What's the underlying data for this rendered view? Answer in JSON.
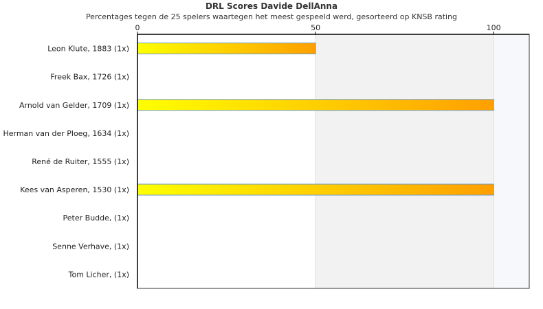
{
  "chart_data": {
    "type": "bar",
    "orientation": "horizontal",
    "title": "DRL Scores Davide DellAnna",
    "subtitle": "Percentages tegen de 25 spelers waartegen het meest gespeeld werd, gesorteerd op KNSB rating",
    "xlabel": "",
    "ylabel": "",
    "xlim": [
      0,
      110
    ],
    "x_ticks": [
      0,
      50,
      100
    ],
    "categories": [
      "Leon Klute, 1883 (1x)",
      "Freek Bax, 1726 (1x)",
      "Arnold van Gelder, 1709 (1x)",
      "Herman van der Ploeg, 1634 (1x)",
      "René de Ruiter, 1555 (1x)",
      "Kees van Asperen, 1530 (1x)",
      "Peter Budde,  (1x)",
      "Senne Verhave,  (1x)",
      "Tom Licher,  (1x)"
    ],
    "values": [
      50,
      0,
      100,
      0,
      0,
      100,
      0,
      0,
      0
    ],
    "grid": true,
    "colors": {
      "bar_start": "#ffff00",
      "bar_end": "#ff9f00",
      "bar_border": "#6f9bc8",
      "band_shade": "#f2f2f2",
      "band_shade_light": "#f7f8fb",
      "axis": "#333333",
      "grid": "#dddddd"
    }
  }
}
